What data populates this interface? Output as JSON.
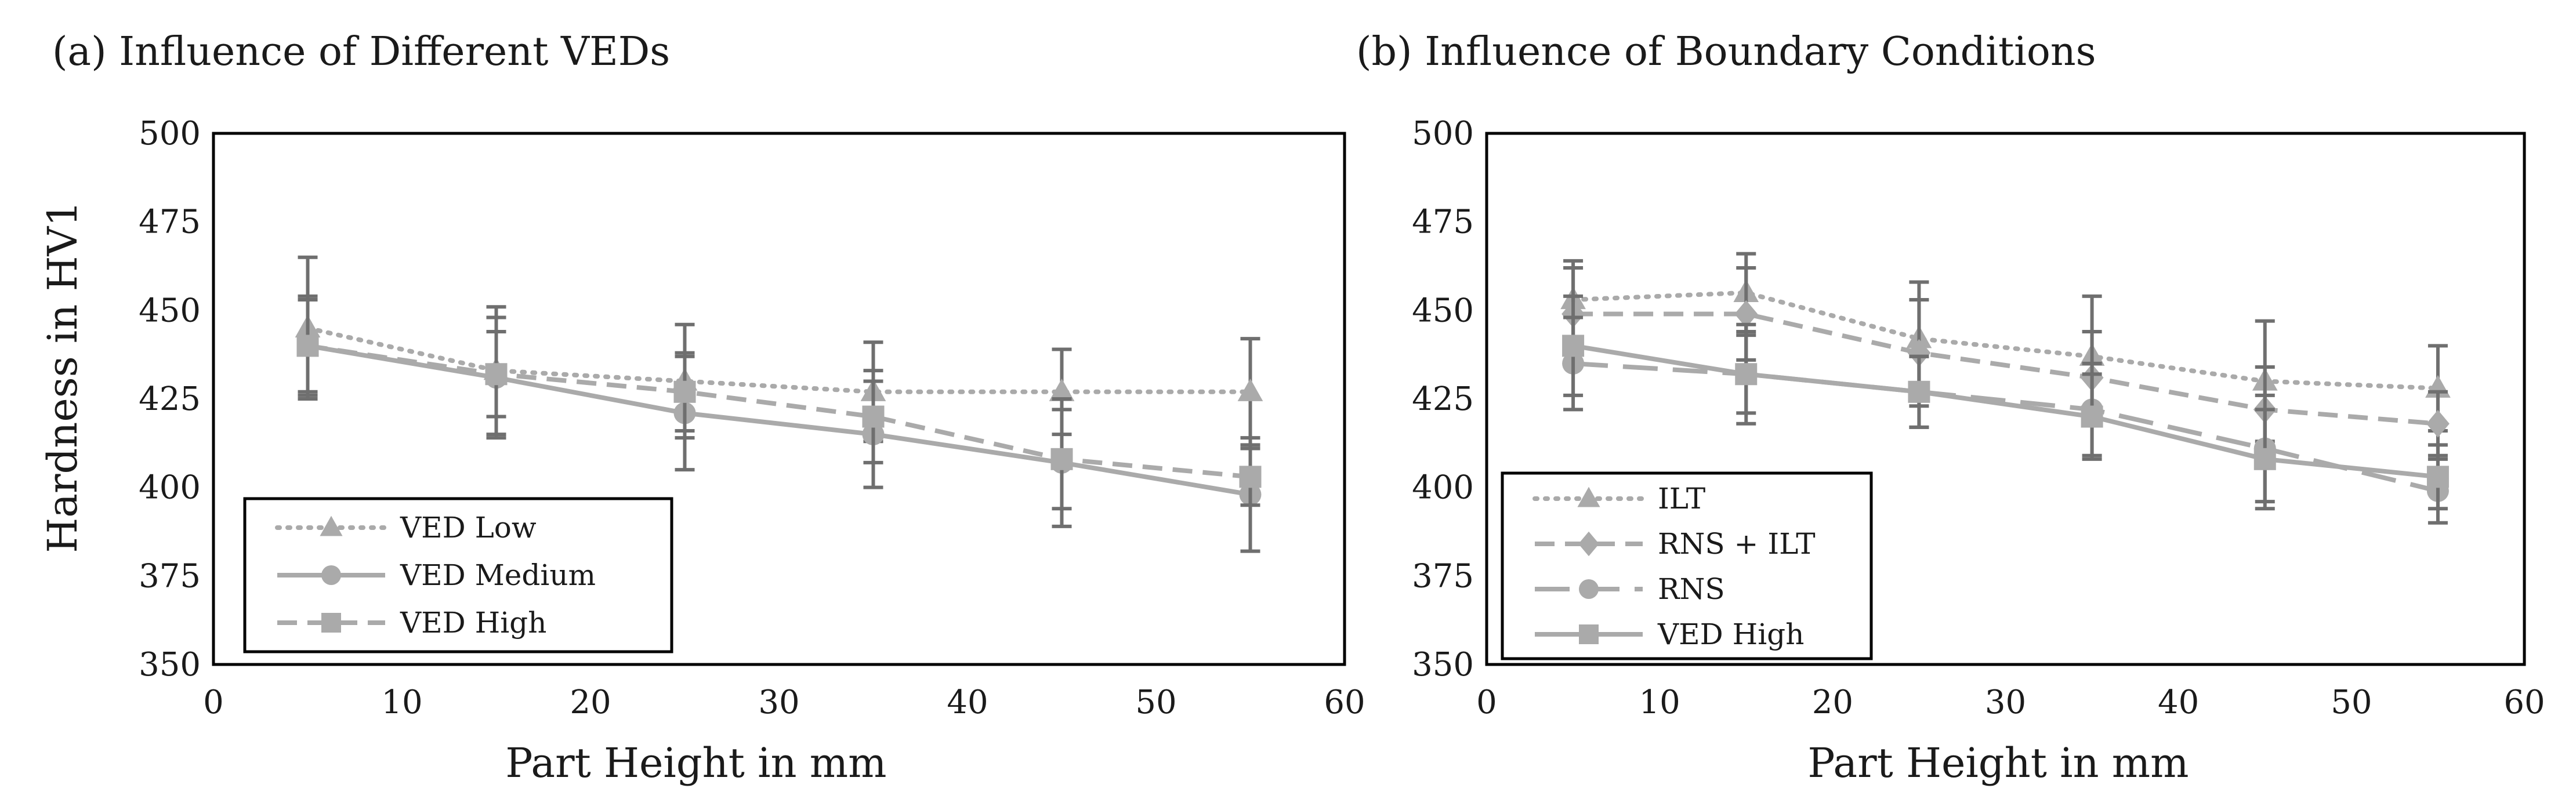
{
  "colors": {
    "series": "#aaaaaa",
    "errorbar": "#6f6f6f",
    "frame": "#000000",
    "text": "#1a1a1a"
  },
  "chart_data": [
    {
      "type": "line",
      "title": "(a) Influence of Different VEDs",
      "xlabel": "Part Height in mm",
      "ylabel": "Hardness in HV1",
      "xlim": [
        0,
        60
      ],
      "ylim": [
        350,
        500
      ],
      "xticks": [
        0,
        10,
        20,
        30,
        40,
        50,
        60
      ],
      "yticks": [
        350,
        375,
        400,
        425,
        450,
        475,
        500
      ],
      "legend_position": "bottom-left",
      "series": [
        {
          "name": "VED Low",
          "style": "dotted",
          "marker": "triangle",
          "x": [
            5,
            15,
            25,
            35,
            45,
            55
          ],
          "y": [
            445,
            433,
            430,
            427,
            427,
            427
          ],
          "err": [
            20,
            18,
            16,
            14,
            12,
            15
          ]
        },
        {
          "name": "VED Medium",
          "style": "solid",
          "marker": "circle",
          "x": [
            5,
            15,
            25,
            35,
            45,
            55
          ],
          "y": [
            440,
            431,
            421,
            415,
            407,
            398
          ],
          "err": [
            14,
            17,
            16,
            15,
            18,
            16
          ]
        },
        {
          "name": "VED High",
          "style": "dashed",
          "marker": "square",
          "x": [
            5,
            15,
            25,
            35,
            45,
            55
          ],
          "y": [
            440,
            432,
            427,
            420,
            408,
            403
          ],
          "err": [
            13,
            12,
            11,
            13,
            14,
            8
          ]
        }
      ]
    },
    {
      "type": "line",
      "title": "(b) Influence of Boundary Conditions",
      "xlabel": "Part Height in mm",
      "ylabel": "",
      "xlim": [
        0,
        60
      ],
      "ylim": [
        350,
        500
      ],
      "xticks": [
        0,
        10,
        20,
        30,
        40,
        50,
        60
      ],
      "yticks": [
        350,
        375,
        400,
        425,
        450,
        475,
        500
      ],
      "legend_position": "bottom-left",
      "series": [
        {
          "name": "ILT",
          "style": "dotted",
          "marker": "triangle",
          "x": [
            5,
            15,
            25,
            35,
            45,
            55
          ],
          "y": [
            453,
            455,
            442,
            437,
            430,
            428
          ],
          "err": [
            11,
            11,
            16,
            17,
            17,
            12
          ]
        },
        {
          "name": "RNS + ILT",
          "style": "dashed",
          "marker": "diamond",
          "x": [
            5,
            15,
            25,
            35,
            45,
            55
          ],
          "y": [
            449,
            449,
            438,
            431,
            422,
            418
          ],
          "err": [
            13,
            13,
            15,
            13,
            12,
            9
          ]
        },
        {
          "name": "RNS",
          "style": "longdash",
          "marker": "circle",
          "x": [
            5,
            15,
            25,
            35,
            45,
            55
          ],
          "y": [
            435,
            432,
            427,
            422,
            411,
            399
          ],
          "err": [
            13,
            11,
            10,
            13,
            15,
            9
          ]
        },
        {
          "name": "VED High",
          "style": "solid",
          "marker": "square",
          "x": [
            5,
            15,
            25,
            35,
            45,
            55
          ],
          "y": [
            440,
            432,
            427,
            420,
            408,
            403
          ],
          "err": [
            14,
            14,
            10,
            12,
            14,
            9
          ]
        }
      ]
    }
  ]
}
